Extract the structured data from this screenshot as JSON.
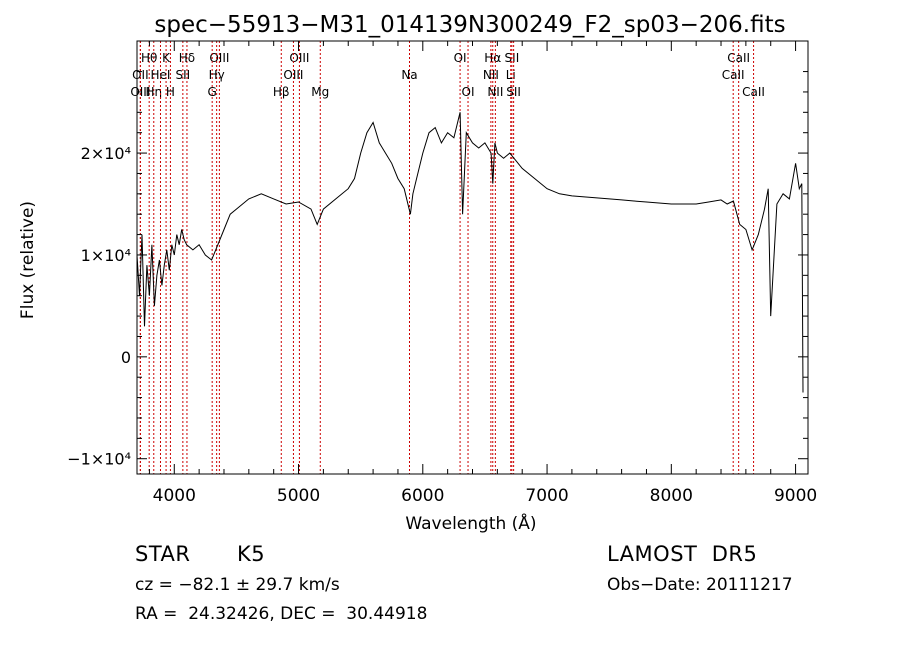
{
  "chart_data": {
    "type": "line",
    "title": "spec−55913−M31_014139N300249_F2_sp03−206.fits",
    "xlabel": "Wavelength (Å)",
    "ylabel": "Flux (relative)",
    "xlim": [
      3700,
      9100
    ],
    "ylim": [
      -11500,
      31000
    ],
    "xticks": [
      {
        "value": 4000,
        "label": "4000"
      },
      {
        "value": 5000,
        "label": "5000"
      },
      {
        "value": 6000,
        "label": "6000"
      },
      {
        "value": 7000,
        "label": "7000"
      },
      {
        "value": 8000,
        "label": "8000"
      },
      {
        "value": 9000,
        "label": "9000"
      }
    ],
    "yticks": [
      {
        "value": -10000,
        "label": "−1×10⁴"
      },
      {
        "value": 0,
        "label": "0"
      },
      {
        "value": 10000,
        "label": "1×10⁴"
      },
      {
        "value": 20000,
        "label": "2×10⁴"
      }
    ],
    "line_color": "#000000",
    "marker_color": "#cc0000",
    "series": [
      {
        "values_x": [
          3700,
          3720,
          3740,
          3760,
          3780,
          3800,
          3820,
          3840,
          3860,
          3880,
          3900,
          3920,
          3940,
          3960,
          3980,
          4000,
          4020,
          4040,
          4060,
          4080,
          4100,
          4150,
          4200,
          4250,
          4300,
          4350,
          4400,
          4450,
          4500,
          4600,
          4700,
          4800,
          4900,
          5000,
          5100,
          5150,
          5200,
          5300,
          5400,
          5450,
          5500,
          5550,
          5600,
          5650,
          5700,
          5750,
          5800,
          5850,
          5880,
          5900,
          5920,
          5950,
          6000,
          6050,
          6100,
          6150,
          6200,
          6250,
          6280,
          6300,
          6320,
          6350,
          6400,
          6450,
          6500,
          6550,
          6563,
          6580,
          6600,
          6650,
          6700,
          6800,
          6900,
          7000,
          7100,
          7200,
          7300,
          7400,
          7500,
          7600,
          7700,
          7800,
          7900,
          8000,
          8100,
          8200,
          8300,
          8400,
          8450,
          8500,
          8550,
          8600,
          8650,
          8700,
          8750,
          8780,
          8800,
          8850,
          8900,
          8950,
          9000,
          9030,
          9050,
          9060
        ],
        "values_y": [
          10000,
          6000,
          12000,
          3000,
          9000,
          6000,
          11000,
          5000,
          8000,
          9500,
          7000,
          9000,
          10500,
          8500,
          11000,
          10000,
          12000,
          11000,
          12500,
          11500,
          11000,
          10500,
          11000,
          10000,
          9500,
          11000,
          12500,
          14000,
          14500,
          15500,
          16000,
          15500,
          15000,
          15200,
          14500,
          13000,
          14500,
          15500,
          16500,
          17500,
          20000,
          22000,
          23000,
          21000,
          20000,
          19000,
          17500,
          16500,
          15000,
          14000,
          16000,
          17500,
          20000,
          22000,
          22500,
          21000,
          22000,
          21500,
          23000,
          24000,
          14000,
          22000,
          21000,
          20500,
          21000,
          20000,
          17000,
          21000,
          20000,
          19500,
          20000,
          18500,
          17500,
          16500,
          16000,
          15800,
          15700,
          15600,
          15500,
          15400,
          15300,
          15200,
          15100,
          15000,
          15000,
          15000,
          15200,
          15400,
          15000,
          15300,
          13000,
          12500,
          10500,
          12000,
          14500,
          16500,
          4000,
          15000,
          16000,
          15500,
          19000,
          16500,
          17000,
          -3500
        ]
      }
    ],
    "lines": [
      {
        "label": "Hθ",
        "x": 3798,
        "row": 1
      },
      {
        "label": "OII",
        "x": 3727,
        "row": 2
      },
      {
        "label": "OIII",
        "x": 3727,
        "row": 3
      },
      {
        "label": "Hη",
        "x": 3835,
        "row": 3
      },
      {
        "label": "K",
        "x": 3934,
        "row": 1
      },
      {
        "label": "HeI",
        "x": 3889,
        "row": 2
      },
      {
        "label": "H",
        "x": 3969,
        "row": 3
      },
      {
        "label": "Hδ",
        "x": 4102,
        "row": 1
      },
      {
        "label": "SII",
        "x": 4069,
        "row": 2
      },
      {
        "label": "OIII",
        "x": 4363,
        "row": 1
      },
      {
        "label": "Hγ",
        "x": 4341,
        "row": 2
      },
      {
        "label": "G",
        "x": 4305,
        "row": 3
      },
      {
        "label": "Hβ",
        "x": 4861,
        "row": 3
      },
      {
        "label": "OIII",
        "x": 5007,
        "row": 1
      },
      {
        "label": "OIII",
        "x": 4959,
        "row": 2
      },
      {
        "label": "Mg",
        "x": 5175,
        "row": 3
      },
      {
        "label": "Na",
        "x": 5893,
        "row": 2
      },
      {
        "label": "OI",
        "x": 6300,
        "row": 1
      },
      {
        "label": "OI",
        "x": 6364,
        "row": 3
      },
      {
        "label": "Hα",
        "x": 6563,
        "row": 1
      },
      {
        "label": "NII",
        "x": 6548,
        "row": 2
      },
      {
        "label": "NII",
        "x": 6584,
        "row": 3
      },
      {
        "label": "SII",
        "x": 6717,
        "row": 1
      },
      {
        "label": "Li",
        "x": 6708,
        "row": 2
      },
      {
        "label": "SII",
        "x": 6731,
        "row": 3
      },
      {
        "label": "CaII",
        "x": 8542,
        "row": 1
      },
      {
        "label": "CaII",
        "x": 8498,
        "row": 2
      },
      {
        "label": "CaII",
        "x": 8662,
        "row": 3
      }
    ]
  },
  "info": {
    "class_label": "STAR",
    "subclass_label": "K5",
    "survey": "LAMOST  DR5",
    "cz": "cz = −82.1 ± 29.7 km/s",
    "obs_date": "Obs−Date: 20111217",
    "coords": "RA =  24.32426, DEC =  30.44918"
  }
}
